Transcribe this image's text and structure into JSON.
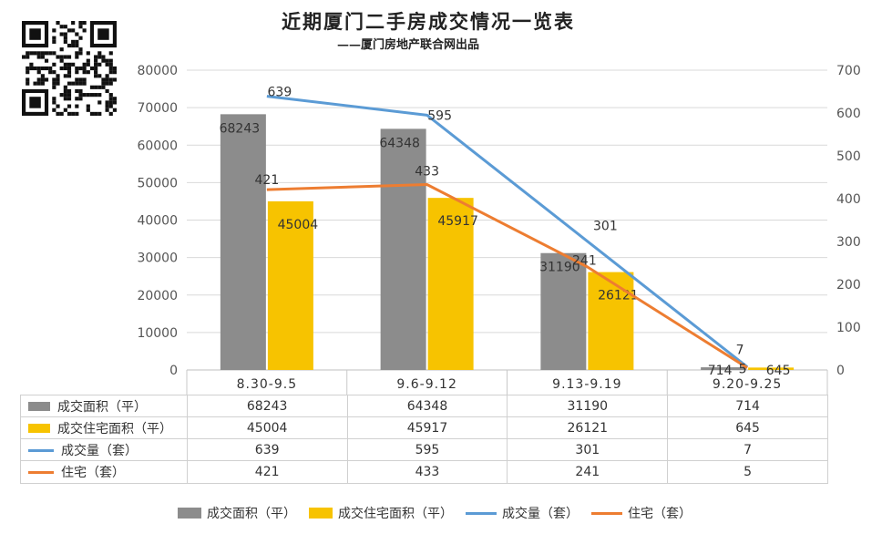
{
  "title": "近期厦门二手房成交情况一览表",
  "subtitle": "——厦门房地产联合网出品",
  "colors": {
    "area": "#8c8c8c",
    "res_area": "#f7c300",
    "volume": "#5b9bd5",
    "res_volume": "#ed7d31",
    "grid": "#d9d9d9"
  },
  "chart_data": {
    "type": "bar",
    "title": "近期厦门二手房成交情况一览表",
    "subtitle": "——厦门房地产联合网出品",
    "categories": [
      "8.30-9.5",
      "9.6-9.12",
      "9.13-9.19",
      "9.20-9.25"
    ],
    "series": [
      {
        "name": "成交面积（平）",
        "type": "bar",
        "axis": "left",
        "values": [
          68243,
          64348,
          31190,
          714
        ]
      },
      {
        "name": "成交住宅面积（平）",
        "type": "bar",
        "axis": "left",
        "values": [
          45004,
          45917,
          26121,
          645
        ]
      },
      {
        "name": "成交量（套）",
        "type": "line",
        "axis": "right",
        "values": [
          639,
          595,
          301,
          7
        ]
      },
      {
        "name": "住宅（套）",
        "type": "line",
        "axis": "right",
        "values": [
          421,
          433,
          241,
          5
        ]
      }
    ],
    "left_ticks": [
      "0",
      "10000",
      "20000",
      "30000",
      "40000",
      "50000",
      "60000",
      "70000",
      "80000"
    ],
    "right_ticks": [
      "0",
      "100",
      "200",
      "300",
      "400",
      "500",
      "600",
      "700"
    ],
    "ylim_left": [
      0,
      80000
    ],
    "ylim_right": [
      0,
      700
    ],
    "grid": true,
    "legend": "bottom",
    "data_table": true
  }
}
